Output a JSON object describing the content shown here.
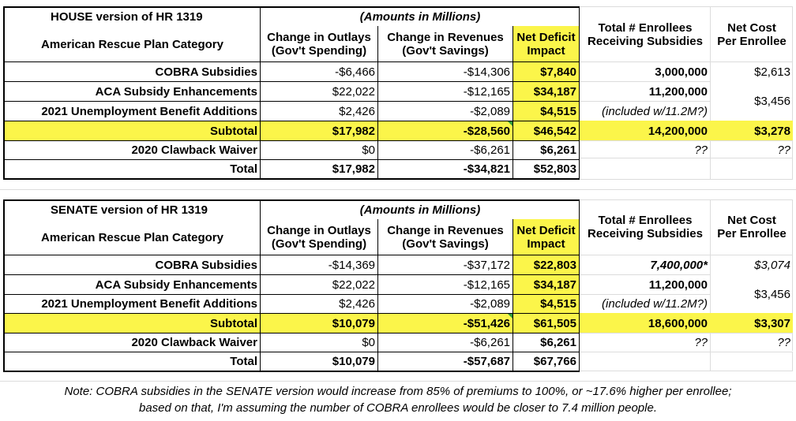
{
  "colors": {
    "highlight": "#fbf54a",
    "grid": "#dcdcdc",
    "border": "#000000"
  },
  "house": {
    "title": "HOUSE version of HR 1319",
    "amounts_header": "(Amounts in Millions)",
    "category_header": "American Rescue Plan Category",
    "outlays_header_1": "Change in Outlays",
    "outlays_header_2": "(Gov't Spending)",
    "revenues_header_1": "Change in Revenues",
    "revenues_header_2": "(Gov't Savings)",
    "deficit_header_1": "Net Deficit",
    "deficit_header_2": "Impact",
    "enrollees_header_1": "Total # Enrollees",
    "enrollees_header_2": "Receiving Subsidies",
    "netcost_header_1": "Net Cost",
    "netcost_header_2": "Per Enrollee",
    "rows": [
      {
        "category": "COBRA Subsidies",
        "outlays": "-$6,466",
        "revenues": "-$14,306",
        "deficit": "$7,840",
        "enrollees": "3,000,000",
        "netcost": "$2,613"
      },
      {
        "category": "ACA Subsidy Enhancements",
        "outlays": "$22,022",
        "revenues": "-$12,165",
        "deficit": "$34,187",
        "enrollees": "11,200,000",
        "netcost": "$3,456"
      },
      {
        "category": "2021 Unemployment Benefit Additions",
        "outlays": "$2,426",
        "revenues": "-$2,089",
        "deficit": "$4,515",
        "enrollees": "(included w/11.2M?)",
        "netcost": ""
      },
      {
        "category": "Subtotal",
        "outlays": "$17,982",
        "revenues": "-$28,560",
        "deficit": "$46,542",
        "enrollees": "14,200,000",
        "netcost": "$3,278"
      },
      {
        "category": "2020 Clawback Waiver",
        "outlays": "$0",
        "revenues": "-$6,261",
        "deficit": "$6,261",
        "enrollees": "??",
        "netcost": "??"
      },
      {
        "category": "Total",
        "outlays": "$17,982",
        "revenues": "-$34,821",
        "deficit": "$52,803",
        "enrollees": "",
        "netcost": ""
      }
    ]
  },
  "senate": {
    "title": "SENATE version of HR 1319",
    "amounts_header": "(Amounts in Millions)",
    "category_header": "American Rescue Plan Category",
    "outlays_header_1": "Change in Outlays",
    "outlays_header_2": "(Gov't Spending)",
    "revenues_header_1": "Change in Revenues",
    "revenues_header_2": "(Gov't Savings)",
    "deficit_header_1": "Net Deficit",
    "deficit_header_2": "Impact",
    "enrollees_header_1": "Total # Enrollees",
    "enrollees_header_2": "Receiving Subsidies",
    "netcost_header_1": "Net Cost",
    "netcost_header_2": "Per Enrollee",
    "rows": [
      {
        "category": "COBRA Subsidies",
        "outlays": "-$14,369",
        "revenues": "-$37,172",
        "deficit": "$22,803",
        "enrollees": "7,400,000*",
        "netcost": "$3,074"
      },
      {
        "category": "ACA Subsidy Enhancements",
        "outlays": "$22,022",
        "revenues": "-$12,165",
        "deficit": "$34,187",
        "enrollees": "11,200,000",
        "netcost": "$3,456"
      },
      {
        "category": "2021 Unemployment Benefit Additions",
        "outlays": "$2,426",
        "revenues": "-$2,089",
        "deficit": "$4,515",
        "enrollees": "(included w/11.2M?)",
        "netcost": ""
      },
      {
        "category": "Subtotal",
        "outlays": "$10,079",
        "revenues": "-$51,426",
        "deficit": "$61,505",
        "enrollees": "18,600,000",
        "netcost": "$3,307"
      },
      {
        "category": "2020 Clawback Waiver",
        "outlays": "$0",
        "revenues": "-$6,261",
        "deficit": "$6,261",
        "enrollees": "??",
        "netcost": "??"
      },
      {
        "category": "Total",
        "outlays": "$10,079",
        "revenues": "-$57,687",
        "deficit": "$67,766",
        "enrollees": "",
        "netcost": ""
      }
    ]
  },
  "note": {
    "line1": "Note: COBRA subsidies in the SENATE version would increase from 85% of premiums to 100%, or ~17.6% higher per enrollee;",
    "line2": "based on that, I'm assuming the number of COBRA enrollees would be closer to 7.4 million people."
  }
}
